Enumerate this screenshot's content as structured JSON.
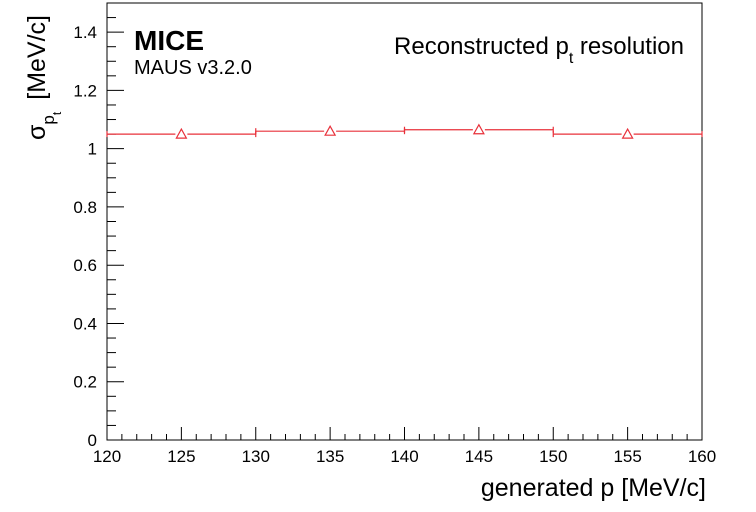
{
  "chart_data": {
    "type": "scatter",
    "title": {
      "pre": "Reconstructed p",
      "sub": "t",
      "post": " resolution"
    },
    "xlabel": "generated p [MeV/c]",
    "ylabel": {
      "sym": "σ",
      "sub": "p",
      "subsub": "t",
      "unit": "[MeV/c]"
    },
    "xlim": [
      120,
      160
    ],
    "ylim": [
      0,
      1.5
    ],
    "x_ticks": [
      120,
      125,
      130,
      135,
      140,
      145,
      150,
      155,
      160
    ],
    "y_ticks": [
      0,
      0.2,
      0.4,
      0.6,
      0.8,
      1,
      1.2,
      1.4
    ],
    "x_tick_labels": [
      "120",
      "125",
      "130",
      "135",
      "140",
      "145",
      "150",
      "155",
      "160"
    ],
    "y_tick_labels": [
      "0",
      "0.2",
      "0.4",
      "0.6",
      "0.8",
      "1",
      "1.2",
      "1.4"
    ],
    "grid": false,
    "marker": "open-triangle",
    "color": "#e8303a",
    "series": [
      {
        "x": [
          125,
          135,
          145,
          155
        ],
        "y": [
          1.05,
          1.06,
          1.065,
          1.05
        ],
        "xerr": [
          5,
          5,
          5,
          5
        ]
      }
    ]
  },
  "annotations": {
    "experiment": "MICE",
    "software": "MAUS v3.2.0"
  }
}
